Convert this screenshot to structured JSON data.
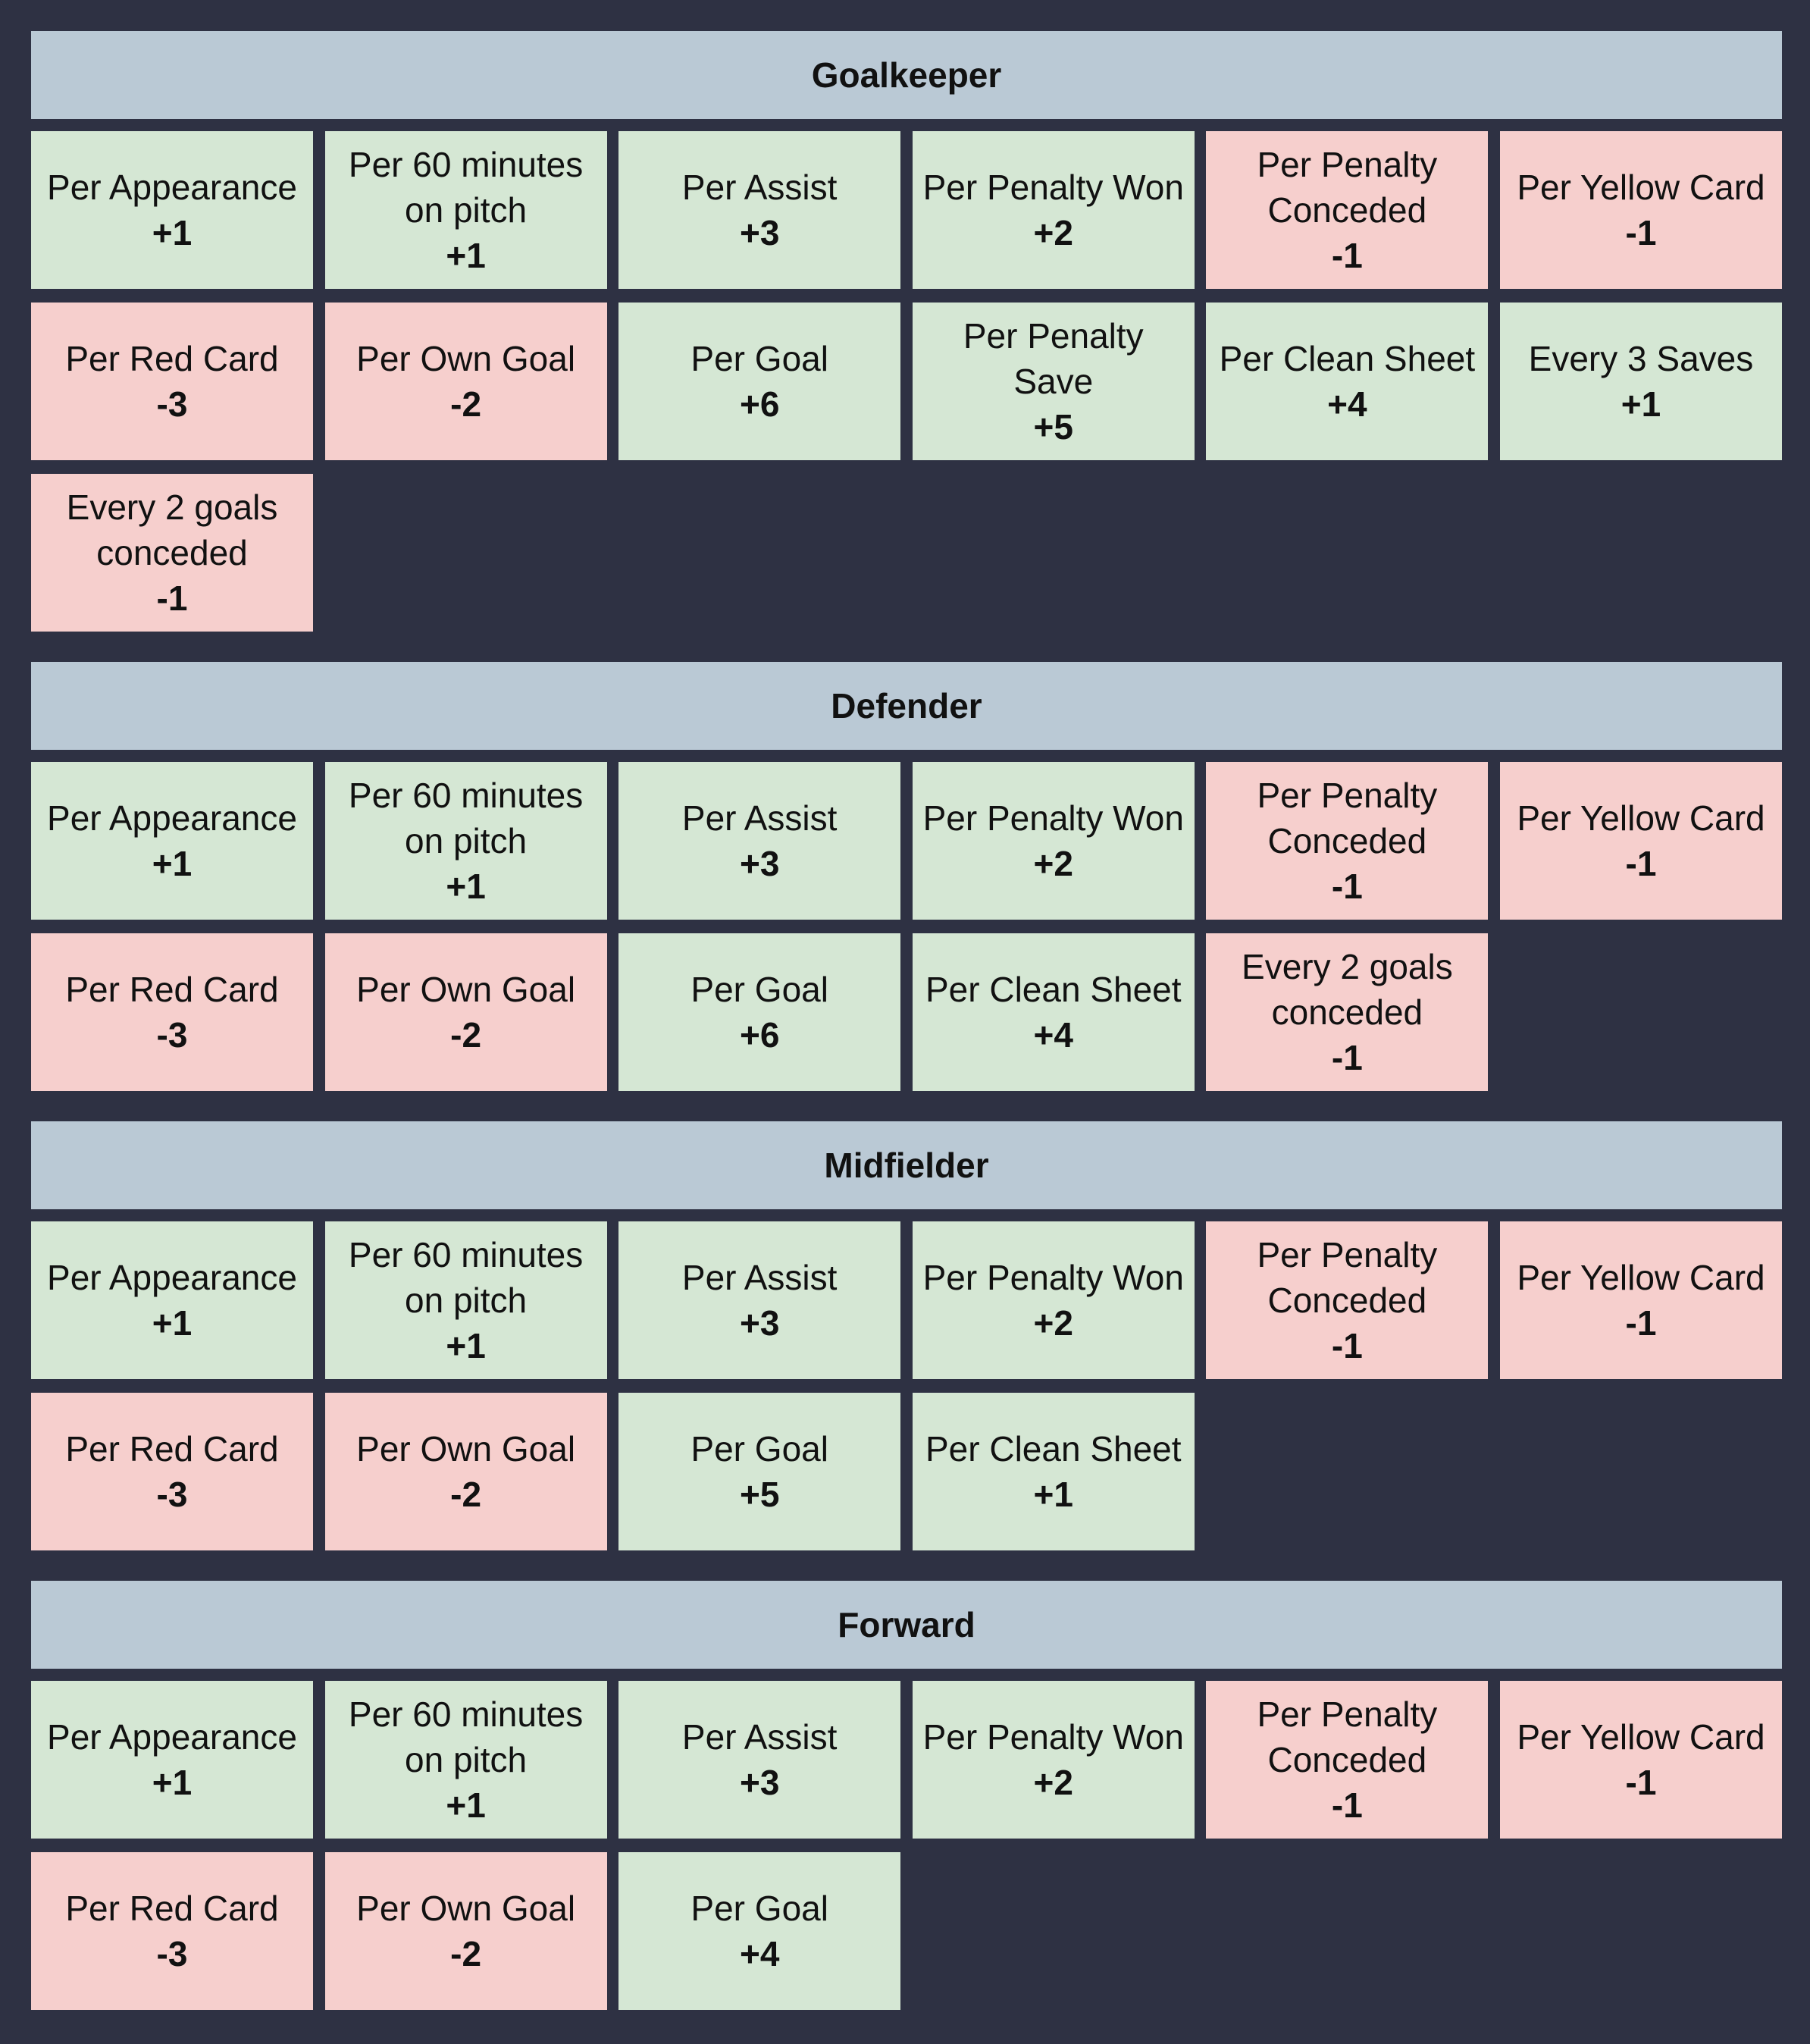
{
  "colors": {
    "background": "#2e3143",
    "header": "#bac9d5",
    "positive": "#d5e7d4",
    "negative": "#f6cfcd"
  },
  "sections": [
    {
      "title": "Goalkeeper",
      "items": [
        {
          "label": "Per Appearance",
          "value": "+1",
          "kind": "pos"
        },
        {
          "label": "Per 60 minutes\non pitch",
          "value": "+1",
          "kind": "pos"
        },
        {
          "label": "Per Assist",
          "value": "+3",
          "kind": "pos"
        },
        {
          "label": "Per Penalty Won",
          "value": "+2",
          "kind": "pos"
        },
        {
          "label": "Per Penalty\nConceded",
          "value": "-1",
          "kind": "neg"
        },
        {
          "label": "Per Yellow Card",
          "value": "-1",
          "kind": "neg"
        },
        {
          "label": "Per Red Card",
          "value": "-3",
          "kind": "neg"
        },
        {
          "label": "Per Own Goal",
          "value": "-2",
          "kind": "neg"
        },
        {
          "label": "Per Goal",
          "value": "+6",
          "kind": "pos"
        },
        {
          "label": "Per Penalty\nSave",
          "value": "+5",
          "kind": "pos"
        },
        {
          "label": "Per Clean Sheet",
          "value": "+4",
          "kind": "pos"
        },
        {
          "label": "Every 3 Saves",
          "value": "+1",
          "kind": "pos"
        },
        {
          "label": "Every 2 goals\nconceded",
          "value": "-1",
          "kind": "neg"
        }
      ]
    },
    {
      "title": "Defender",
      "items": [
        {
          "label": "Per Appearance",
          "value": "+1",
          "kind": "pos"
        },
        {
          "label": "Per 60 minutes\non pitch",
          "value": "+1",
          "kind": "pos"
        },
        {
          "label": "Per Assist",
          "value": "+3",
          "kind": "pos"
        },
        {
          "label": "Per Penalty Won",
          "value": "+2",
          "kind": "pos"
        },
        {
          "label": "Per Penalty\nConceded",
          "value": "-1",
          "kind": "neg"
        },
        {
          "label": "Per Yellow Card",
          "value": "-1",
          "kind": "neg"
        },
        {
          "label": "Per Red Card",
          "value": "-3",
          "kind": "neg"
        },
        {
          "label": "Per Own Goal",
          "value": "-2",
          "kind": "neg"
        },
        {
          "label": "Per Goal",
          "value": "+6",
          "kind": "pos"
        },
        {
          "label": "Per Clean Sheet",
          "value": "+4",
          "kind": "pos"
        },
        {
          "label": "Every 2 goals\nconceded",
          "value": "-1",
          "kind": "neg"
        }
      ]
    },
    {
      "title": "Midfielder",
      "items": [
        {
          "label": "Per Appearance",
          "value": "+1",
          "kind": "pos"
        },
        {
          "label": "Per 60 minutes\non pitch",
          "value": "+1",
          "kind": "pos"
        },
        {
          "label": "Per Assist",
          "value": "+3",
          "kind": "pos"
        },
        {
          "label": "Per Penalty Won",
          "value": "+2",
          "kind": "pos"
        },
        {
          "label": "Per Penalty\nConceded",
          "value": "-1",
          "kind": "neg"
        },
        {
          "label": "Per Yellow Card",
          "value": "-1",
          "kind": "neg"
        },
        {
          "label": "Per Red Card",
          "value": "-3",
          "kind": "neg"
        },
        {
          "label": "Per Own Goal",
          "value": "-2",
          "kind": "neg"
        },
        {
          "label": "Per Goal",
          "value": "+5",
          "kind": "pos"
        },
        {
          "label": "Per Clean Sheet",
          "value": "+1",
          "kind": "pos"
        }
      ]
    },
    {
      "title": "Forward",
      "items": [
        {
          "label": "Per Appearance",
          "value": "+1",
          "kind": "pos"
        },
        {
          "label": "Per 60 minutes\non pitch",
          "value": "+1",
          "kind": "pos"
        },
        {
          "label": "Per Assist",
          "value": "+3",
          "kind": "pos"
        },
        {
          "label": "Per Penalty Won",
          "value": "+2",
          "kind": "pos"
        },
        {
          "label": "Per Penalty\nConceded",
          "value": "-1",
          "kind": "neg"
        },
        {
          "label": "Per Yellow Card",
          "value": "-1",
          "kind": "neg"
        },
        {
          "label": "Per Red Card",
          "value": "-3",
          "kind": "neg"
        },
        {
          "label": "Per Own Goal",
          "value": "-2",
          "kind": "neg"
        },
        {
          "label": "Per Goal",
          "value": "+4",
          "kind": "pos"
        }
      ]
    }
  ]
}
